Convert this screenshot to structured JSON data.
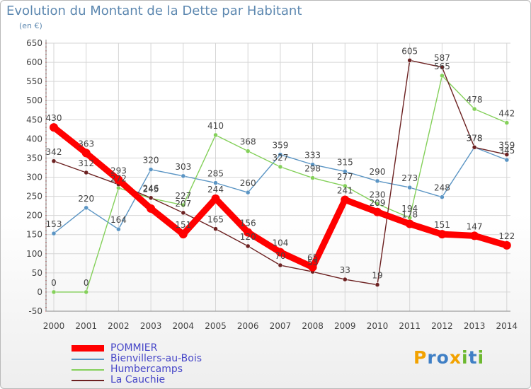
{
  "title": "Evolution du Montant de la Dette par Habitant",
  "subtitle": "(en €)",
  "logo": {
    "letters": [
      "P",
      "r",
      "o",
      "x",
      "i",
      "t",
      "i"
    ],
    "colors": [
      "#f2a200",
      "#3f7fc5",
      "#3f7fc5",
      "#f2a200",
      "#6cb82f",
      "#3f7fc5",
      "#6cb82f"
    ]
  },
  "chart_data": {
    "type": "line",
    "x": [
      "2000",
      "2001",
      "2002",
      "2003",
      "2004",
      "2005",
      "2006",
      "2007",
      "2008",
      "2009",
      "2010",
      "2011",
      "2012",
      "2013",
      "2014"
    ],
    "ylim": [
      -50,
      650
    ],
    "yticks": [
      "-50",
      "0",
      "50",
      "100",
      "150",
      "200",
      "250",
      "300",
      "350",
      "400",
      "450",
      "500",
      "550",
      "600",
      "650"
    ],
    "grid": true,
    "legend_position": "bottom-left",
    "series": [
      {
        "name": "POMMIER",
        "color": "#ff0000",
        "values": [
          430,
          363,
          293,
          218,
          151,
          244,
          156,
          104,
          65,
          241,
          209,
          178,
          151,
          147,
          122
        ],
        "labels": [
          "430",
          "363",
          "293",
          "",
          "151",
          "244",
          "156",
          "104",
          "65",
          "241",
          "209",
          "178",
          "151",
          "147",
          "122"
        ]
      },
      {
        "name": "Bienvillers-au-Bois",
        "color": "#5b95c4",
        "values": [
          153,
          220,
          164,
          320,
          303,
          285,
          260,
          359,
          333,
          315,
          290,
          273,
          248,
          378,
          345
        ],
        "labels": [
          "153",
          "220",
          "164",
          "320",
          "303",
          "285",
          "260",
          "359",
          "333",
          "315",
          "290",
          "273",
          "248",
          "378",
          "345"
        ]
      },
      {
        "name": "Humbercamps",
        "color": "#84d05a",
        "values": [
          0,
          0,
          272,
          245,
          227,
          410,
          368,
          327,
          298,
          277,
          230,
          194,
          565,
          478,
          442
        ],
        "labels": [
          "0",
          "0",
          "272",
          "245",
          "227",
          "410",
          "368",
          "327",
          "298",
          "277",
          "230",
          "194",
          "565",
          "478",
          "442"
        ]
      },
      {
        "name": "La Cauchie",
        "color": "#6c2121",
        "values": [
          342,
          312,
          281,
          246,
          207,
          165,
          120,
          70,
          53,
          33,
          19,
          605,
          587,
          378,
          359
        ],
        "labels": [
          "342",
          "312",
          "",
          "246",
          "207",
          "165",
          "120",
          "70",
          "53",
          "33",
          "19",
          "605",
          "587",
          "378",
          "359"
        ]
      }
    ]
  }
}
